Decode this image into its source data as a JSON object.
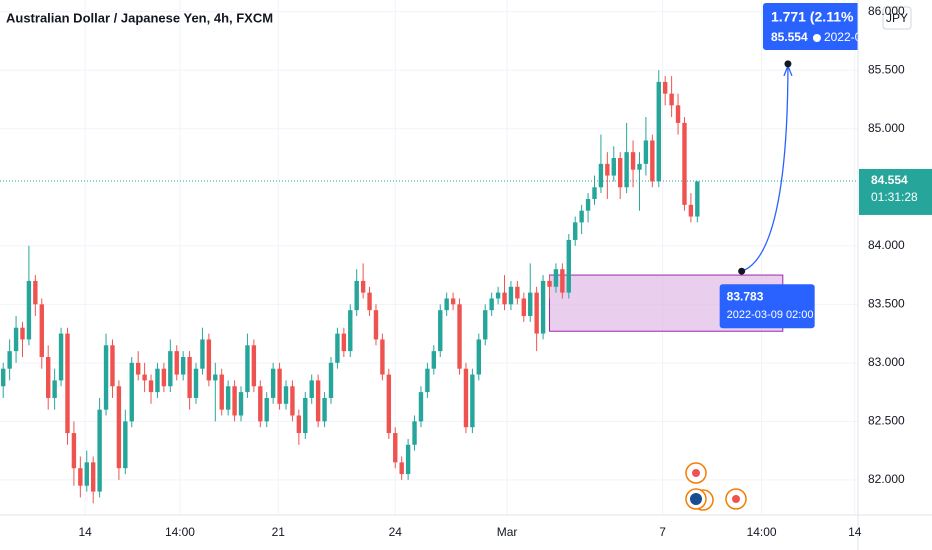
{
  "chart_data": {
    "type": "candlestick",
    "title": "Australian Dollar / Japanese Yen, 4h, FXCM",
    "currency": "JPY",
    "up_color": "#26a69a",
    "down_color": "#ef5350",
    "ylim": [
      81.7,
      86.1
    ],
    "xlim": [
      -0.5,
      133
    ],
    "yticks": [
      {
        "value": 86,
        "label": "86.000"
      },
      {
        "value": 85.5,
        "label": "85.500"
      },
      {
        "value": 85,
        "label": "85.000"
      },
      {
        "value": 84,
        "label": "84.000"
      },
      {
        "value": 83.5,
        "label": "83.500"
      },
      {
        "value": 83,
        "label": "83.000"
      },
      {
        "value": 82.5,
        "label": "82.500"
      },
      {
        "value": 82,
        "label": "82.000"
      }
    ],
    "xticks": [
      {
        "value": 12.75,
        "label": "14"
      },
      {
        "value": 27.5,
        "label": "14:00"
      },
      {
        "value": 42.8,
        "label": "21"
      },
      {
        "value": 61,
        "label": "24"
      },
      {
        "value": 78.4,
        "label": "Mar"
      },
      {
        "value": 102.6,
        "label": "7"
      },
      {
        "value": 118,
        "label": "14:00"
      },
      {
        "value": 132.5,
        "label": "14"
      }
    ],
    "last_price": {
      "value": 84.554,
      "label": "84.554",
      "countdown": "01:31:28"
    },
    "zone": {
      "price": [
        83.27,
        83.75
      ],
      "index": [
        85,
        121.3
      ],
      "color": "#e1bee7"
    },
    "measure": {
      "from": {
        "index": 114.9,
        "price": 83.783,
        "label": "83.783",
        "time": "2022-03-09 02:00"
      },
      "to": {
        "index": 122.1,
        "price": 85.554,
        "label": "85.554",
        "change": "1.771 (2.11%",
        "time": "2022-0"
      },
      "color": "#2962ff"
    },
    "candles": [
      [
        82.8,
        83.0,
        82.7,
        82.95
      ],
      [
        82.95,
        83.2,
        82.85,
        83.1
      ],
      [
        83.1,
        83.4,
        83.0,
        83.3
      ],
      [
        83.3,
        83.35,
        83.05,
        83.2
      ],
      [
        83.2,
        84.0,
        83.15,
        83.7
      ],
      [
        83.7,
        83.75,
        83.4,
        83.5
      ],
      [
        83.5,
        83.55,
        82.95,
        83.05
      ],
      [
        83.05,
        83.15,
        82.6,
        82.7
      ],
      [
        82.7,
        82.95,
        82.6,
        82.85
      ],
      [
        82.85,
        83.3,
        82.8,
        83.25
      ],
      [
        83.25,
        83.3,
        82.3,
        82.4
      ],
      [
        82.4,
        82.5,
        81.95,
        82.1
      ],
      [
        82.1,
        82.2,
        81.85,
        81.95
      ],
      [
        81.95,
        82.25,
        81.9,
        82.15
      ],
      [
        82.15,
        82.2,
        81.8,
        81.9
      ],
      [
        81.9,
        82.7,
        81.85,
        82.6
      ],
      [
        82.6,
        83.25,
        82.55,
        83.15
      ],
      [
        83.15,
        83.2,
        82.7,
        82.8
      ],
      [
        82.8,
        82.85,
        82.0,
        82.1
      ],
      [
        82.1,
        82.6,
        82.05,
        82.5
      ],
      [
        82.5,
        83.05,
        82.45,
        83.0
      ],
      [
        83.0,
        83.1,
        82.85,
        82.9
      ],
      [
        82.9,
        83.0,
        82.75,
        82.85
      ],
      [
        82.85,
        82.9,
        82.65,
        82.75
      ],
      [
        82.75,
        83.0,
        82.7,
        82.95
      ],
      [
        82.95,
        83.0,
        82.75,
        82.8
      ],
      [
        82.8,
        83.2,
        82.75,
        83.1
      ],
      [
        83.1,
        83.15,
        82.85,
        82.9
      ],
      [
        82.9,
        83.1,
        82.85,
        83.05
      ],
      [
        83.05,
        83.1,
        82.6,
        82.7
      ],
      [
        82.7,
        83.0,
        82.65,
        82.95
      ],
      [
        82.95,
        83.3,
        82.9,
        83.2
      ],
      [
        83.2,
        83.25,
        82.8,
        82.85
      ],
      [
        82.85,
        83.0,
        82.5,
        82.9
      ],
      [
        82.9,
        82.95,
        82.55,
        82.6
      ],
      [
        82.6,
        82.85,
        82.55,
        82.8
      ],
      [
        82.8,
        82.85,
        82.5,
        82.55
      ],
      [
        82.55,
        82.8,
        82.5,
        82.75
      ],
      [
        82.75,
        83.25,
        82.7,
        83.15
      ],
      [
        83.15,
        83.2,
        82.75,
        82.8
      ],
      [
        82.8,
        82.85,
        82.45,
        82.5
      ],
      [
        82.5,
        82.75,
        82.45,
        82.7
      ],
      [
        82.7,
        83.0,
        82.65,
        82.95
      ],
      [
        82.95,
        83.0,
        82.6,
        82.65
      ],
      [
        82.65,
        82.85,
        82.6,
        82.8
      ],
      [
        82.8,
        82.85,
        82.5,
        82.55
      ],
      [
        82.55,
        82.6,
        82.3,
        82.4
      ],
      [
        82.4,
        82.75,
        82.35,
        82.7
      ],
      [
        82.7,
        82.9,
        82.65,
        82.85
      ],
      [
        82.85,
        82.9,
        82.45,
        82.5
      ],
      [
        82.5,
        82.75,
        82.45,
        82.7
      ],
      [
        82.7,
        83.05,
        82.65,
        83.0
      ],
      [
        83.0,
        83.3,
        82.95,
        83.25
      ],
      [
        83.25,
        83.3,
        83.05,
        83.1
      ],
      [
        83.1,
        83.5,
        83.05,
        83.45
      ],
      [
        83.45,
        83.8,
        83.4,
        83.7
      ],
      [
        83.7,
        83.85,
        83.55,
        83.6
      ],
      [
        83.6,
        83.65,
        83.4,
        83.45
      ],
      [
        83.45,
        83.5,
        83.15,
        83.2
      ],
      [
        83.2,
        83.25,
        82.85,
        82.9
      ],
      [
        82.9,
        82.95,
        82.35,
        82.4
      ],
      [
        82.4,
        82.45,
        82.1,
        82.15
      ],
      [
        82.15,
        82.2,
        82.0,
        82.05
      ],
      [
        82.05,
        82.35,
        82.0,
        82.3
      ],
      [
        82.3,
        82.55,
        82.25,
        82.5
      ],
      [
        82.5,
        82.8,
        82.45,
        82.75
      ],
      [
        82.75,
        83.0,
        82.7,
        82.95
      ],
      [
        82.95,
        83.15,
        82.9,
        83.1
      ],
      [
        83.1,
        83.5,
        83.05,
        83.45
      ],
      [
        83.45,
        83.6,
        83.4,
        83.55
      ],
      [
        83.55,
        83.6,
        83.45,
        83.5
      ],
      [
        83.5,
        83.55,
        82.9,
        82.95
      ],
      [
        82.95,
        83.0,
        82.4,
        82.45
      ],
      [
        82.45,
        82.95,
        82.4,
        82.9
      ],
      [
        82.9,
        83.25,
        82.85,
        83.2
      ],
      [
        83.2,
        83.5,
        83.15,
        83.45
      ],
      [
        83.45,
        83.6,
        83.4,
        83.55
      ],
      [
        83.55,
        83.65,
        83.5,
        83.6
      ],
      [
        83.6,
        83.75,
        83.45,
        83.5
      ],
      [
        83.5,
        83.7,
        83.45,
        83.65
      ],
      [
        83.65,
        83.7,
        83.5,
        83.55
      ],
      [
        83.55,
        83.6,
        83.35,
        83.4
      ],
      [
        83.4,
        83.85,
        83.35,
        83.6
      ],
      [
        83.6,
        83.65,
        83.1,
        83.25
      ],
      [
        83.25,
        83.75,
        83.2,
        83.7
      ],
      [
        83.7,
        83.75,
        83.55,
        83.65
      ],
      [
        83.65,
        83.85,
        83.6,
        83.8
      ],
      [
        83.8,
        83.85,
        83.55,
        83.6
      ],
      [
        83.6,
        84.1,
        83.55,
        84.05
      ],
      [
        84.05,
        84.25,
        84.0,
        84.2
      ],
      [
        84.2,
        84.35,
        84.1,
        84.3
      ],
      [
        84.3,
        84.45,
        84.2,
        84.4
      ],
      [
        84.4,
        84.6,
        84.35,
        84.5
      ],
      [
        84.5,
        84.95,
        84.45,
        84.7
      ],
      [
        84.7,
        84.8,
        84.4,
        84.6
      ],
      [
        84.6,
        84.85,
        84.55,
        84.75
      ],
      [
        84.75,
        84.8,
        84.4,
        84.5
      ],
      [
        84.5,
        85.05,
        84.45,
        84.8
      ],
      [
        84.8,
        84.9,
        84.5,
        84.65
      ],
      [
        84.65,
        84.8,
        84.3,
        84.7
      ],
      [
        84.7,
        85.1,
        84.6,
        84.9
      ],
      [
        84.9,
        84.95,
        84.5,
        84.55
      ],
      [
        84.55,
        85.5,
        84.5,
        85.4
      ],
      [
        85.4,
        85.45,
        85.2,
        85.3
      ],
      [
        85.3,
        85.45,
        85.1,
        85.2
      ],
      [
        85.2,
        85.3,
        84.95,
        85.05
      ],
      [
        85.05,
        85.1,
        84.3,
        84.35
      ],
      [
        84.35,
        84.45,
        84.2,
        84.25
      ],
      [
        84.25,
        84.55,
        84.2,
        84.55
      ]
    ]
  }
}
